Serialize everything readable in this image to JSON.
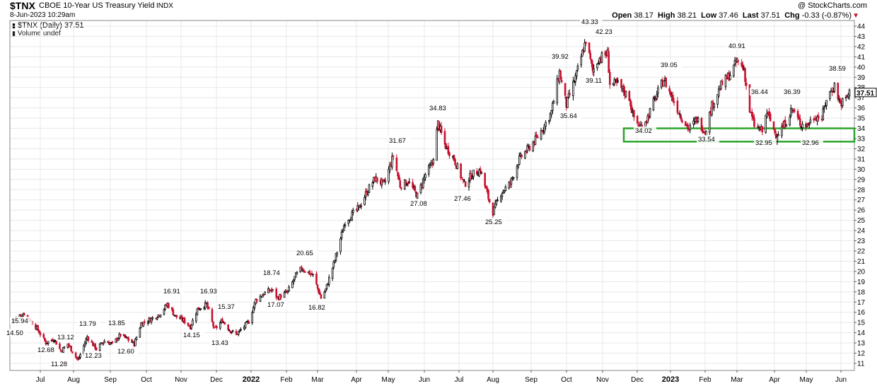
{
  "header": {
    "symbol": "$TNX",
    "description": "CBOE 10-Year US Treasury Yield",
    "exchange": "INDX",
    "datetime": "8-Jun-2023 10:29am",
    "copyright": "@ StockCharts.com",
    "ohlc": {
      "open_label": "Open",
      "open": "38.17",
      "high_label": "High",
      "high": "38.21",
      "low_label": "Low",
      "low": "37.46",
      "last_label": "Last",
      "last": "37.51",
      "chg_label": "Chg",
      "chg": "-0.33 (-0.87%)"
    }
  },
  "legend": {
    "price_series": "$TNX (Daily) 37.51",
    "volume": "Volume undef"
  },
  "colors": {
    "up_candle": "#000000",
    "down_candle": "#c8102e",
    "support_box": "#2aa52a",
    "grid": "#e8e8e8",
    "last_price_marker": "#000000"
  },
  "chart_data": {
    "type": "candlestick",
    "y_axis": {
      "min": 11,
      "max": 44,
      "position": "right",
      "ticks": [
        11,
        12,
        13,
        14,
        15,
        16,
        17,
        18,
        19,
        20,
        21,
        22,
        23,
        24,
        25,
        26,
        27,
        28,
        29,
        30,
        31,
        32,
        33,
        34,
        35,
        36,
        37,
        38,
        39,
        40,
        41,
        42,
        43,
        44
      ]
    },
    "x_axis": {
      "labels": [
        {
          "text": "Jul",
          "bold": false
        },
        {
          "text": "Aug",
          "bold": false
        },
        {
          "text": "Sep",
          "bold": false
        },
        {
          "text": "Oct",
          "bold": false
        },
        {
          "text": "Nov",
          "bold": false
        },
        {
          "text": "Dec",
          "bold": false
        },
        {
          "text": "2022",
          "bold": true
        },
        {
          "text": "Feb",
          "bold": false
        },
        {
          "text": "Mar",
          "bold": false
        },
        {
          "text": "Apr",
          "bold": false
        },
        {
          "text": "May",
          "bold": false
        },
        {
          "text": "Jun",
          "bold": false
        },
        {
          "text": "Jul",
          "bold": false
        },
        {
          "text": "Aug",
          "bold": false
        },
        {
          "text": "Sep",
          "bold": false
        },
        {
          "text": "Oct",
          "bold": false
        },
        {
          "text": "Nov",
          "bold": false
        },
        {
          "text": "Dec",
          "bold": false
        },
        {
          "text": "2023",
          "bold": true
        },
        {
          "text": "Feb",
          "bold": false
        },
        {
          "text": "Mar",
          "bold": false
        },
        {
          "text": "Apr",
          "bold": false
        },
        {
          "text": "May",
          "bold": false
        },
        {
          "text": "Jun",
          "bold": false
        }
      ]
    },
    "grid": true,
    "last_value": 37.51,
    "price_path": [
      {
        "date": "2021-06-08",
        "y": 15.2
      },
      {
        "date": "2021-06-18",
        "y": 15.9
      },
      {
        "date": "2021-06-28",
        "y": 14.6
      },
      {
        "date": "2021-07-07",
        "y": 13.0
      },
      {
        "date": "2021-07-14",
        "y": 13.4
      },
      {
        "date": "2021-07-20",
        "y": 12.2
      },
      {
        "date": "2021-07-26",
        "y": 12.9
      },
      {
        "date": "2021-08-04",
        "y": 11.3
      },
      {
        "date": "2021-08-12",
        "y": 13.6
      },
      {
        "date": "2021-08-20",
        "y": 12.4
      },
      {
        "date": "2021-08-27",
        "y": 13.2
      },
      {
        "date": "2021-09-03",
        "y": 12.9
      },
      {
        "date": "2021-09-10",
        "y": 13.8
      },
      {
        "date": "2021-09-17",
        "y": 13.3
      },
      {
        "date": "2021-09-22",
        "y": 12.9
      },
      {
        "date": "2021-09-28",
        "y": 14.9
      },
      {
        "date": "2021-10-06",
        "y": 15.3
      },
      {
        "date": "2021-10-14",
        "y": 15.8
      },
      {
        "date": "2021-10-21",
        "y": 16.8
      },
      {
        "date": "2021-10-28",
        "y": 15.6
      },
      {
        "date": "2021-11-04",
        "y": 15.2
      },
      {
        "date": "2021-11-10",
        "y": 14.6
      },
      {
        "date": "2021-11-16",
        "y": 16.3
      },
      {
        "date": "2021-11-24",
        "y": 16.8
      },
      {
        "date": "2021-12-01",
        "y": 14.3
      },
      {
        "date": "2021-12-08",
        "y": 15.2
      },
      {
        "date": "2021-12-14",
        "y": 14.3
      },
      {
        "date": "2021-12-20",
        "y": 13.8
      },
      {
        "date": "2021-12-31",
        "y": 15.1
      },
      {
        "date": "2022-01-06",
        "y": 17.2
      },
      {
        "date": "2022-01-14",
        "y": 17.9
      },
      {
        "date": "2022-01-20",
        "y": 18.2
      },
      {
        "date": "2022-01-25",
        "y": 17.4
      },
      {
        "date": "2022-02-03",
        "y": 18.0
      },
      {
        "date": "2022-02-10",
        "y": 19.6
      },
      {
        "date": "2022-02-15",
        "y": 20.3
      },
      {
        "date": "2022-02-25",
        "y": 19.6
      },
      {
        "date": "2022-03-04",
        "y": 17.4
      },
      {
        "date": "2022-03-08",
        "y": 18.2
      },
      {
        "date": "2022-03-16",
        "y": 21.1
      },
      {
        "date": "2022-03-25",
        "y": 24.9
      },
      {
        "date": "2022-04-06",
        "y": 26.2
      },
      {
        "date": "2022-04-13",
        "y": 27.8
      },
      {
        "date": "2022-04-20",
        "y": 29.1
      },
      {
        "date": "2022-04-28",
        "y": 28.5
      },
      {
        "date": "2022-05-06",
        "y": 31.3
      },
      {
        "date": "2022-05-12",
        "y": 28.4
      },
      {
        "date": "2022-05-19",
        "y": 28.8
      },
      {
        "date": "2022-05-27",
        "y": 27.4
      },
      {
        "date": "2022-06-03",
        "y": 29.5
      },
      {
        "date": "2022-06-09",
        "y": 30.5
      },
      {
        "date": "2022-06-14",
        "y": 34.5
      },
      {
        "date": "2022-06-20",
        "y": 32.4
      },
      {
        "date": "2022-06-28",
        "y": 31.0
      },
      {
        "date": "2022-07-07",
        "y": 28.5
      },
      {
        "date": "2022-07-14",
        "y": 29.5
      },
      {
        "date": "2022-07-21",
        "y": 29.9
      },
      {
        "date": "2022-07-28",
        "y": 27.2
      },
      {
        "date": "2022-08-01",
        "y": 25.8
      },
      {
        "date": "2022-08-08",
        "y": 27.7
      },
      {
        "date": "2022-08-16",
        "y": 28.6
      },
      {
        "date": "2022-08-24",
        "y": 31.0
      },
      {
        "date": "2022-08-31",
        "y": 31.9
      },
      {
        "date": "2022-09-08",
        "y": 33.0
      },
      {
        "date": "2022-09-16",
        "y": 34.5
      },
      {
        "date": "2022-09-21",
        "y": 35.6
      },
      {
        "date": "2022-09-28",
        "y": 39.5
      },
      {
        "date": "2022-10-04",
        "y": 36.3
      },
      {
        "date": "2022-10-13",
        "y": 39.3
      },
      {
        "date": "2022-10-21",
        "y": 42.6
      },
      {
        "date": "2022-10-27",
        "y": 39.6
      },
      {
        "date": "2022-11-01",
        "y": 40.8
      },
      {
        "date": "2022-11-09",
        "y": 41.3
      },
      {
        "date": "2022-11-11",
        "y": 38.4
      },
      {
        "date": "2022-11-18",
        "y": 38.3
      },
      {
        "date": "2022-11-28",
        "y": 37.0
      },
      {
        "date": "2022-12-01",
        "y": 35.3
      },
      {
        "date": "2022-12-07",
        "y": 34.1
      },
      {
        "date": "2022-12-14",
        "y": 35.1
      },
      {
        "date": "2022-12-20",
        "y": 36.8
      },
      {
        "date": "2022-12-28",
        "y": 38.8
      },
      {
        "date": "2023-01-04",
        "y": 37.1
      },
      {
        "date": "2023-01-12",
        "y": 35.2
      },
      {
        "date": "2023-01-19",
        "y": 33.9
      },
      {
        "date": "2023-01-26",
        "y": 34.9
      },
      {
        "date": "2023-02-02",
        "y": 33.7
      },
      {
        "date": "2023-02-08",
        "y": 36.2
      },
      {
        "date": "2023-02-16",
        "y": 38.2
      },
      {
        "date": "2023-02-24",
        "y": 39.3
      },
      {
        "date": "2023-03-02",
        "y": 40.6
      },
      {
        "date": "2023-03-08",
        "y": 39.8
      },
      {
        "date": "2023-03-13",
        "y": 35.7
      },
      {
        "date": "2023-03-17",
        "y": 34.3
      },
      {
        "date": "2023-03-24",
        "y": 33.7
      },
      {
        "date": "2023-03-28",
        "y": 35.6
      },
      {
        "date": "2023-04-05",
        "y": 33.3
      },
      {
        "date": "2023-04-12",
        "y": 34.3
      },
      {
        "date": "2023-04-19",
        "y": 35.9
      },
      {
        "date": "2023-04-26",
        "y": 34.5
      },
      {
        "date": "2023-05-02",
        "y": 34.3
      },
      {
        "date": "2023-05-09",
        "y": 35.2
      },
      {
        "date": "2023-05-15",
        "y": 35.0
      },
      {
        "date": "2023-05-19",
        "y": 36.9
      },
      {
        "date": "2023-05-26",
        "y": 38.2
      },
      {
        "date": "2023-05-31",
        "y": 36.4
      },
      {
        "date": "2023-06-05",
        "y": 36.9
      },
      {
        "date": "2023-06-08",
        "y": 37.5
      }
    ],
    "annotations": [
      {
        "label": "15.94",
        "value": 15.94
      },
      {
        "label": "14.50",
        "value": 14.5
      },
      {
        "label": "12.68",
        "value": 12.68
      },
      {
        "label": "13.12",
        "value": 13.12
      },
      {
        "label": "11.28",
        "value": 11.28
      },
      {
        "label": "13.79",
        "value": 13.79
      },
      {
        "label": "12.23",
        "value": 12.23
      },
      {
        "label": "13.85",
        "value": 13.85
      },
      {
        "label": "12.60",
        "value": 12.6
      },
      {
        "label": "16.91",
        "value": 16.91
      },
      {
        "label": "14.15",
        "value": 14.15
      },
      {
        "label": "16.93",
        "value": 16.93
      },
      {
        "label": "15.37",
        "value": 15.37
      },
      {
        "label": "13.43",
        "value": 13.43
      },
      {
        "label": "18.74",
        "value": 18.74
      },
      {
        "label": "17.07",
        "value": 17.07
      },
      {
        "label": "20.65",
        "value": 20.65
      },
      {
        "label": "16.82",
        "value": 16.82
      },
      {
        "label": "31.67",
        "value": 31.67
      },
      {
        "label": "27.08",
        "value": 27.08
      },
      {
        "label": "34.83",
        "value": 34.83
      },
      {
        "label": "27.46",
        "value": 27.46
      },
      {
        "label": "25.25",
        "value": 25.25
      },
      {
        "label": "39.92",
        "value": 39.92
      },
      {
        "label": "35.64",
        "value": 35.64
      },
      {
        "label": "43.33",
        "value": 43.33
      },
      {
        "label": "42.23",
        "value": 42.23
      },
      {
        "label": "39.11",
        "value": 39.11
      },
      {
        "label": "39.05",
        "value": 39.05
      },
      {
        "label": "34.02",
        "value": 34.02
      },
      {
        "label": "33.54",
        "value": 33.54
      },
      {
        "label": "40.91",
        "value": 40.91
      },
      {
        "label": "36.44",
        "value": 36.44
      },
      {
        "label": "32.95",
        "value": 32.95
      },
      {
        "label": "36.39",
        "value": 36.39
      },
      {
        "label": "32.96",
        "value": 32.96
      },
      {
        "label": "38.59",
        "value": 38.59
      }
    ],
    "support_zone": {
      "low": 32.7,
      "high": 34.0
    }
  }
}
